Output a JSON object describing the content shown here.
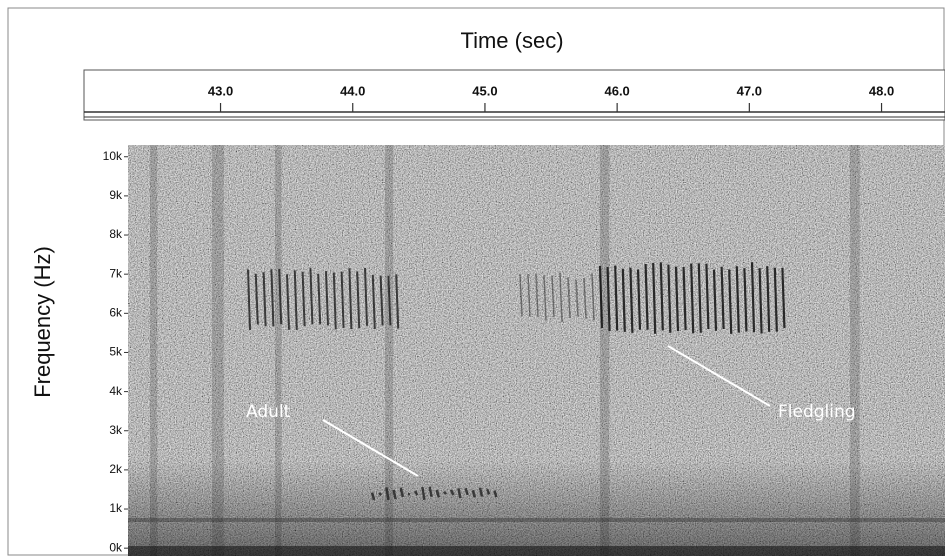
{
  "chart_data": {
    "type": "spectrogram",
    "xlabel": "Time (sec)",
    "ylabel": "Frequency (Hz)",
    "xlim": [
      42.3,
      48.48
    ],
    "xticks": [
      {
        "value": 43,
        "label": "43.0"
      },
      {
        "value": 44,
        "label": "44.0"
      },
      {
        "value": 45,
        "label": "45.0"
      },
      {
        "value": 46,
        "label": "46.0"
      },
      {
        "value": 47,
        "label": "47.0"
      },
      {
        "value": 48,
        "label": "48.0"
      }
    ],
    "ylim": [
      -200,
      10300
    ],
    "yticks": [
      {
        "value": 0,
        "label": "0k"
      },
      {
        "value": 1000,
        "label": "1k"
      },
      {
        "value": 2000,
        "label": "2k"
      },
      {
        "value": 3000,
        "label": "3k"
      },
      {
        "value": 4000,
        "label": "4k"
      },
      {
        "value": 5000,
        "label": "5k"
      },
      {
        "value": 6000,
        "label": "6k"
      },
      {
        "value": 7000,
        "label": "7k"
      },
      {
        "value": 8000,
        "label": "8k"
      },
      {
        "value": 9000,
        "label": "9k"
      },
      {
        "value": 10000,
        "label": "10k"
      }
    ],
    "annotations": [
      {
        "text": "Adult"
      },
      {
        "text": "Fledgling"
      }
    ]
  }
}
